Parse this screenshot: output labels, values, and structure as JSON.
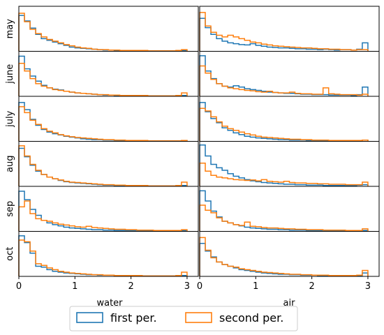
{
  "chart_data": {
    "type": "histogram-grid",
    "rows": [
      "may",
      "june",
      "july",
      "aug",
      "sep",
      "oct"
    ],
    "columns": [
      "water",
      "air"
    ],
    "xlabel": [
      "water",
      "air"
    ],
    "ylabel": "",
    "xlim": [
      0,
      3.2
    ],
    "xticks": [
      0,
      1,
      2,
      3
    ],
    "ylim": [
      0,
      1
    ],
    "bins": {
      "start": 0,
      "width": 0.1,
      "count": 30
    },
    "grid": false,
    "legend": {
      "placement": "bottom-center",
      "entries": [
        "first per.",
        "second per."
      ]
    },
    "colors": {
      "first per.": "#1f77b4",
      "second per.": "#ff7f0e"
    },
    "series": [
      {
        "name": "first per.",
        "row": "may",
        "column": "water",
        "values": [
          0.85,
          0.72,
          0.55,
          0.4,
          0.3,
          0.26,
          0.22,
          0.18,
          0.14,
          0.1,
          0.08,
          0.07,
          0.06,
          0.05,
          0.04,
          0.03,
          0.03,
          0.02,
          0.02,
          0.02,
          0.02,
          0.02,
          0.01,
          0.01,
          0.01,
          0.01,
          0.01,
          0.01,
          0.01,
          0.02
        ]
      },
      {
        "name": "second per.",
        "row": "may",
        "column": "water",
        "values": [
          0.9,
          0.7,
          0.52,
          0.42,
          0.34,
          0.28,
          0.24,
          0.2,
          0.16,
          0.13,
          0.1,
          0.08,
          0.07,
          0.05,
          0.04,
          0.04,
          0.03,
          0.03,
          0.02,
          0.02,
          0.02,
          0.02,
          0.02,
          0.01,
          0.01,
          0.01,
          0.01,
          0.01,
          0.02,
          0.04
        ]
      },
      {
        "name": "first per.",
        "row": "may",
        "column": "air",
        "values": [
          0.78,
          0.56,
          0.4,
          0.3,
          0.24,
          0.2,
          0.18,
          0.16,
          0.15,
          0.18,
          0.14,
          0.12,
          0.1,
          0.09,
          0.08,
          0.08,
          0.07,
          0.06,
          0.06,
          0.05,
          0.05,
          0.04,
          0.05,
          0.04,
          0.03,
          0.04,
          0.04,
          0.03,
          0.05,
          0.2
        ]
      },
      {
        "name": "second per.",
        "row": "may",
        "column": "air",
        "values": [
          0.92,
          0.6,
          0.45,
          0.38,
          0.34,
          0.38,
          0.34,
          0.3,
          0.26,
          0.22,
          0.2,
          0.17,
          0.15,
          0.13,
          0.12,
          0.11,
          0.1,
          0.09,
          0.08,
          0.08,
          0.07,
          0.06,
          0.06,
          0.05,
          0.05,
          0.04,
          0.04,
          0.03,
          0.04,
          0.04
        ]
      },
      {
        "name": "first per.",
        "row": "june",
        "column": "water",
        "values": [
          0.95,
          0.65,
          0.48,
          0.36,
          0.26,
          0.2,
          0.17,
          0.15,
          0.12,
          0.1,
          0.08,
          0.07,
          0.06,
          0.05,
          0.04,
          0.03,
          0.03,
          0.02,
          0.02,
          0.02,
          0.02,
          0.01,
          0.01,
          0.01,
          0.01,
          0.01,
          0.01,
          0.01,
          0.01,
          0.02
        ]
      },
      {
        "name": "second per.",
        "row": "june",
        "column": "water",
        "values": [
          0.78,
          0.6,
          0.42,
          0.3,
          0.24,
          0.2,
          0.16,
          0.14,
          0.12,
          0.1,
          0.08,
          0.07,
          0.06,
          0.05,
          0.04,
          0.04,
          0.03,
          0.03,
          0.02,
          0.02,
          0.02,
          0.02,
          0.02,
          0.01,
          0.01,
          0.01,
          0.01,
          0.01,
          0.02,
          0.08
        ]
      },
      {
        "name": "first per.",
        "row": "june",
        "column": "air",
        "values": [
          0.96,
          0.6,
          0.42,
          0.3,
          0.24,
          0.22,
          0.25,
          0.22,
          0.18,
          0.16,
          0.14,
          0.12,
          0.1,
          0.09,
          0.08,
          0.07,
          0.07,
          0.06,
          0.05,
          0.05,
          0.04,
          0.04,
          0.04,
          0.03,
          0.03,
          0.03,
          0.03,
          0.02,
          0.04,
          0.22
        ]
      },
      {
        "name": "second per.",
        "row": "june",
        "column": "air",
        "values": [
          0.72,
          0.55,
          0.4,
          0.3,
          0.24,
          0.2,
          0.18,
          0.16,
          0.14,
          0.13,
          0.11,
          0.1,
          0.12,
          0.09,
          0.08,
          0.08,
          0.1,
          0.07,
          0.06,
          0.06,
          0.05,
          0.05,
          0.2,
          0.06,
          0.05,
          0.04,
          0.04,
          0.04,
          0.03,
          0.05
        ]
      },
      {
        "name": "first per.",
        "row": "july",
        "column": "water",
        "values": [
          0.92,
          0.75,
          0.52,
          0.38,
          0.28,
          0.22,
          0.18,
          0.15,
          0.12,
          0.1,
          0.08,
          0.06,
          0.05,
          0.04,
          0.04,
          0.03,
          0.03,
          0.02,
          0.02,
          0.02,
          0.02,
          0.01,
          0.01,
          0.01,
          0.01,
          0.01,
          0.01,
          0.01,
          0.01,
          0.02
        ]
      },
      {
        "name": "second per.",
        "row": "july",
        "column": "water",
        "values": [
          0.82,
          0.68,
          0.5,
          0.4,
          0.3,
          0.24,
          0.2,
          0.16,
          0.13,
          0.11,
          0.09,
          0.08,
          0.07,
          0.06,
          0.05,
          0.04,
          0.04,
          0.03,
          0.03,
          0.02,
          0.02,
          0.02,
          0.02,
          0.01,
          0.01,
          0.01,
          0.01,
          0.01,
          0.01,
          0.02
        ]
      },
      {
        "name": "first per.",
        "row": "july",
        "column": "air",
        "values": [
          0.92,
          0.7,
          0.54,
          0.44,
          0.32,
          0.26,
          0.2,
          0.16,
          0.12,
          0.1,
          0.08,
          0.07,
          0.06,
          0.05,
          0.04,
          0.04,
          0.03,
          0.03,
          0.03,
          0.02,
          0.02,
          0.02,
          0.02,
          0.02,
          0.02,
          0.01,
          0.01,
          0.01,
          0.02,
          0.03
        ]
      },
      {
        "name": "second per.",
        "row": "july",
        "column": "air",
        "values": [
          0.78,
          0.72,
          0.58,
          0.46,
          0.36,
          0.3,
          0.26,
          0.22,
          0.18,
          0.15,
          0.12,
          0.1,
          0.09,
          0.08,
          0.07,
          0.06,
          0.05,
          0.05,
          0.04,
          0.04,
          0.03,
          0.03,
          0.03,
          0.02,
          0.02,
          0.02,
          0.02,
          0.02,
          0.02,
          0.03
        ]
      },
      {
        "name": "first per.",
        "row": "aug",
        "column": "water",
        "values": [
          0.9,
          0.7,
          0.5,
          0.36,
          0.28,
          0.22,
          0.18,
          0.14,
          0.11,
          0.09,
          0.08,
          0.07,
          0.06,
          0.05,
          0.04,
          0.03,
          0.03,
          0.02,
          0.02,
          0.02,
          0.02,
          0.02,
          0.01,
          0.01,
          0.01,
          0.01,
          0.01,
          0.01,
          0.01,
          0.02
        ]
      },
      {
        "name": "second per.",
        "row": "aug",
        "column": "water",
        "values": [
          0.96,
          0.72,
          0.52,
          0.38,
          0.28,
          0.22,
          0.18,
          0.15,
          0.12,
          0.1,
          0.09,
          0.08,
          0.07,
          0.06,
          0.05,
          0.04,
          0.04,
          0.03,
          0.03,
          0.02,
          0.02,
          0.02,
          0.02,
          0.01,
          0.01,
          0.01,
          0.01,
          0.01,
          0.02,
          0.1
        ]
      },
      {
        "name": "first per.",
        "row": "aug",
        "column": "air",
        "values": [
          0.98,
          0.72,
          0.52,
          0.44,
          0.38,
          0.3,
          0.24,
          0.2,
          0.16,
          0.13,
          0.11,
          0.09,
          0.08,
          0.07,
          0.06,
          0.05,
          0.05,
          0.04,
          0.04,
          0.03,
          0.03,
          0.03,
          0.02,
          0.02,
          0.02,
          0.02,
          0.02,
          0.02,
          0.03,
          0.04
        ]
      },
      {
        "name": "second per.",
        "row": "aug",
        "column": "air",
        "values": [
          0.55,
          0.36,
          0.26,
          0.22,
          0.2,
          0.18,
          0.16,
          0.15,
          0.14,
          0.15,
          0.13,
          0.16,
          0.12,
          0.11,
          0.1,
          0.12,
          0.09,
          0.08,
          0.08,
          0.07,
          0.07,
          0.06,
          0.06,
          0.05,
          0.05,
          0.05,
          0.04,
          0.04,
          0.04,
          0.1
        ]
      },
      {
        "name": "first per.",
        "row": "sep",
        "column": "water",
        "values": [
          0.95,
          0.75,
          0.52,
          0.38,
          0.26,
          0.2,
          0.16,
          0.13,
          0.1,
          0.08,
          0.07,
          0.06,
          0.05,
          0.04,
          0.04,
          0.03,
          0.03,
          0.02,
          0.02,
          0.02,
          0.02,
          0.01,
          0.01,
          0.01,
          0.01,
          0.01,
          0.01,
          0.01,
          0.01,
          0.02
        ]
      },
      {
        "name": "second per.",
        "row": "sep",
        "column": "water",
        "values": [
          0.58,
          0.72,
          0.42,
          0.3,
          0.26,
          0.24,
          0.2,
          0.17,
          0.15,
          0.13,
          0.11,
          0.1,
          0.12,
          0.09,
          0.08,
          0.07,
          0.06,
          0.05,
          0.05,
          0.04,
          0.04,
          0.03,
          0.03,
          0.03,
          0.02,
          0.02,
          0.02,
          0.02,
          0.02,
          0.04
        ]
      },
      {
        "name": "first per.",
        "row": "sep",
        "column": "air",
        "values": [
          0.96,
          0.72,
          0.48,
          0.34,
          0.24,
          0.2,
          0.16,
          0.13,
          0.1,
          0.08,
          0.07,
          0.06,
          0.05,
          0.05,
          0.04,
          0.04,
          0.03,
          0.03,
          0.03,
          0.02,
          0.02,
          0.02,
          0.02,
          0.02,
          0.01,
          0.01,
          0.01,
          0.01,
          0.01,
          0.02
        ]
      },
      {
        "name": "second per.",
        "row": "sep",
        "column": "air",
        "values": [
          0.62,
          0.5,
          0.44,
          0.32,
          0.24,
          0.2,
          0.16,
          0.14,
          0.22,
          0.12,
          0.11,
          0.09,
          0.08,
          0.08,
          0.07,
          0.06,
          0.06,
          0.05,
          0.05,
          0.04,
          0.04,
          0.04,
          0.03,
          0.03,
          0.03,
          0.03,
          0.02,
          0.02,
          0.02,
          0.06
        ]
      },
      {
        "name": "first per.",
        "row": "oct",
        "column": "water",
        "values": [
          0.96,
          0.8,
          0.55,
          0.24,
          0.22,
          0.16,
          0.12,
          0.1,
          0.08,
          0.07,
          0.06,
          0.05,
          0.04,
          0.04,
          0.03,
          0.03,
          0.03,
          0.02,
          0.02,
          0.02,
          0.02,
          0.01,
          0.01,
          0.01,
          0.01,
          0.01,
          0.01,
          0.01,
          0.01,
          0.02
        ]
      },
      {
        "name": "second per.",
        "row": "oct",
        "column": "water",
        "values": [
          0.86,
          0.82,
          0.6,
          0.3,
          0.26,
          0.2,
          0.16,
          0.12,
          0.1,
          0.08,
          0.07,
          0.06,
          0.05,
          0.04,
          0.04,
          0.03,
          0.03,
          0.02,
          0.02,
          0.02,
          0.02,
          0.02,
          0.01,
          0.01,
          0.01,
          0.01,
          0.01,
          0.01,
          0.02,
          0.1
        ]
      },
      {
        "name": "first per.",
        "row": "oct",
        "column": "air",
        "values": [
          0.78,
          0.6,
          0.46,
          0.34,
          0.28,
          0.24,
          0.2,
          0.16,
          0.14,
          0.12,
          0.1,
          0.08,
          0.07,
          0.06,
          0.05,
          0.05,
          0.04,
          0.04,
          0.03,
          0.03,
          0.03,
          0.02,
          0.02,
          0.02,
          0.02,
          0.02,
          0.02,
          0.01,
          0.02,
          0.08
        ]
      },
      {
        "name": "second per.",
        "row": "oct",
        "column": "air",
        "values": [
          0.92,
          0.62,
          0.44,
          0.34,
          0.28,
          0.24,
          0.22,
          0.18,
          0.16,
          0.14,
          0.12,
          0.1,
          0.09,
          0.08,
          0.07,
          0.06,
          0.05,
          0.05,
          0.04,
          0.04,
          0.03,
          0.03,
          0.03,
          0.02,
          0.02,
          0.02,
          0.02,
          0.02,
          0.03,
          0.14
        ]
      }
    ]
  }
}
